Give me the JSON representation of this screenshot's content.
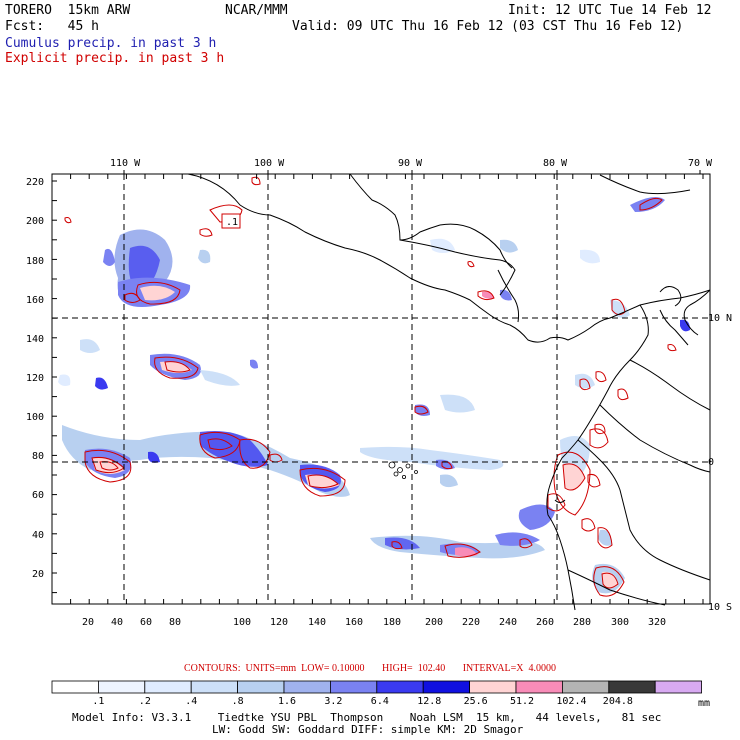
{
  "header": {
    "model": "TORERO  15km ARW",
    "org": "NCAR/MMM",
    "init": "Init: 12 UTC Tue 14 Feb 12",
    "fcst": "Fcst:   45 h",
    "valid": "Valid: 09 UTC Thu 16 Feb 12 (03 CST Thu 16 Feb 12)",
    "field1": "Cumulus precip. in past 3 h",
    "field2": "Explicit precip. in past 3 h"
  },
  "colors": {
    "cumulus_label": "#1f1fb0",
    "explicit_label": "#d00000",
    "contour": "#d00000",
    "coast": "#000000"
  },
  "map": {
    "lon_labels": [
      "110 W",
      "100 W",
      "90 W",
      "80 W",
      "70 W"
    ],
    "lat_labels": [
      "10 N",
      "0",
      "10 S"
    ],
    "y_ticks": [
      "220",
      "200",
      "180",
      "160",
      "140",
      "120",
      "100",
      "80",
      "60",
      "40",
      "20"
    ],
    "x_ticks": [
      "20",
      "40",
      "60",
      "80",
      "100",
      "120",
      "140",
      "160",
      "180",
      "200",
      "220",
      "240",
      "260",
      "280",
      "300",
      "320"
    ],
    "contour_label": ".1"
  },
  "contours_line": "CONTOURS:  UNITS=mm  LOW= 0.10000       HIGH=  102.40       INTERVAL=X  4.0000",
  "legend": {
    "unit": "mm",
    "labels": [
      ".1",
      ".2",
      ".4",
      ".8",
      "1.6",
      "3.2",
      "6.4",
      "12.8",
      "25.6",
      "51.2",
      "102.4",
      "204.8"
    ],
    "colors": [
      "#ffffff",
      "#eef4ff",
      "#e0ecff",
      "#cde0f8",
      "#b8d0f0",
      "#a0b2ee",
      "#7a82f2",
      "#3a3af0",
      "#1010e0",
      "#ffd4d4",
      "#f88cb8",
      "#b4b4b4",
      "#383838",
      "#d8aaf2"
    ]
  },
  "footer": {
    "line1": "Model Info: V3.3.1    Tiedtke YSU PBL  Thompson    Noah LSM  15 km,   44 levels,   81 sec",
    "line2": "LW: Godd SW: Goddard DIFF: simple KM: 2D Smagor"
  }
}
